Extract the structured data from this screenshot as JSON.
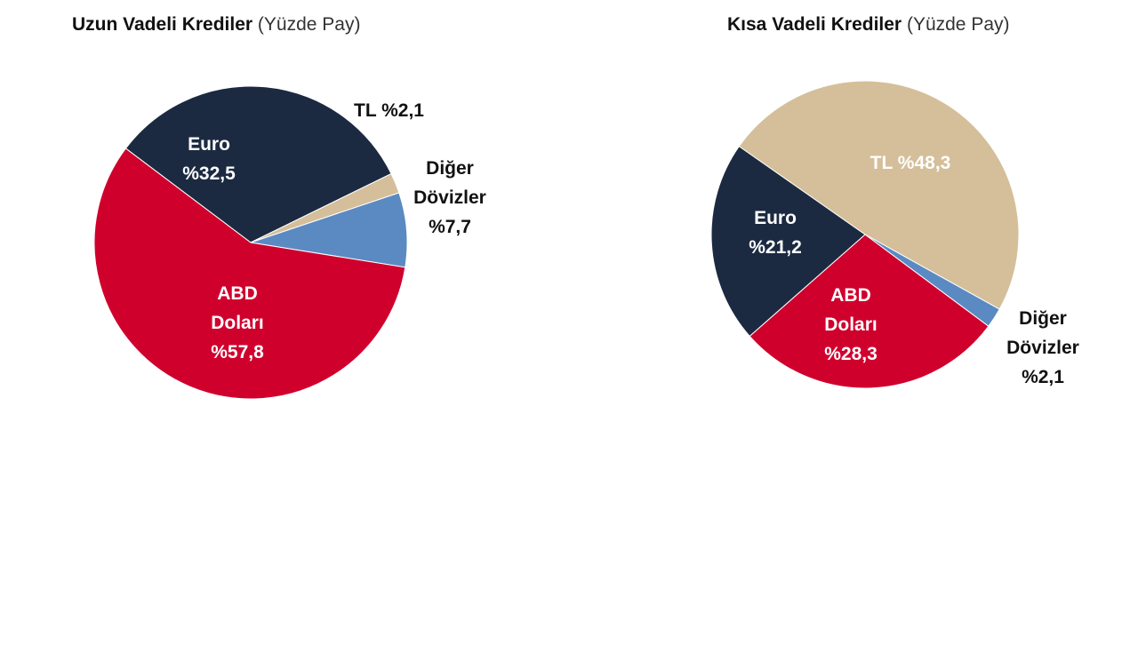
{
  "chart_data": [
    {
      "type": "pie",
      "title": "Uzun Vadeli Krediler",
      "subtitle": "(Yüzde Pay)",
      "slices": [
        {
          "label": "Euro",
          "value": 32.5,
          "value_text": "%32,5",
          "color": "#1b2a41"
        },
        {
          "label": "TL",
          "value": 2.1,
          "value_text": "%2,1",
          "color": "#d4bf9a"
        },
        {
          "label": "Diğer Dövizler",
          "value": 7.7,
          "value_text": "%7,7",
          "color": "#5b8ac2"
        },
        {
          "label": "ABD Doları",
          "value": 57.8,
          "value_text": "%57,8",
          "color": "#d0002d"
        }
      ]
    },
    {
      "type": "pie",
      "title": "Kısa Vadeli Krediler",
      "subtitle": "(Yüzde Pay)",
      "slices": [
        {
          "label": "TL",
          "value": 48.3,
          "value_text": "%48,3",
          "color": "#d4bf9a"
        },
        {
          "label": "Diğer Dövizler",
          "value": 2.1,
          "value_text": "%2,1",
          "color": "#5b8ac2"
        },
        {
          "label": "ABD Doları",
          "value": 28.3,
          "value_text": "%28,3",
          "color": "#d0002d"
        },
        {
          "label": "Euro",
          "value": 21.2,
          "value_text": "%21,2",
          "color": "#1b2a41"
        }
      ]
    }
  ]
}
